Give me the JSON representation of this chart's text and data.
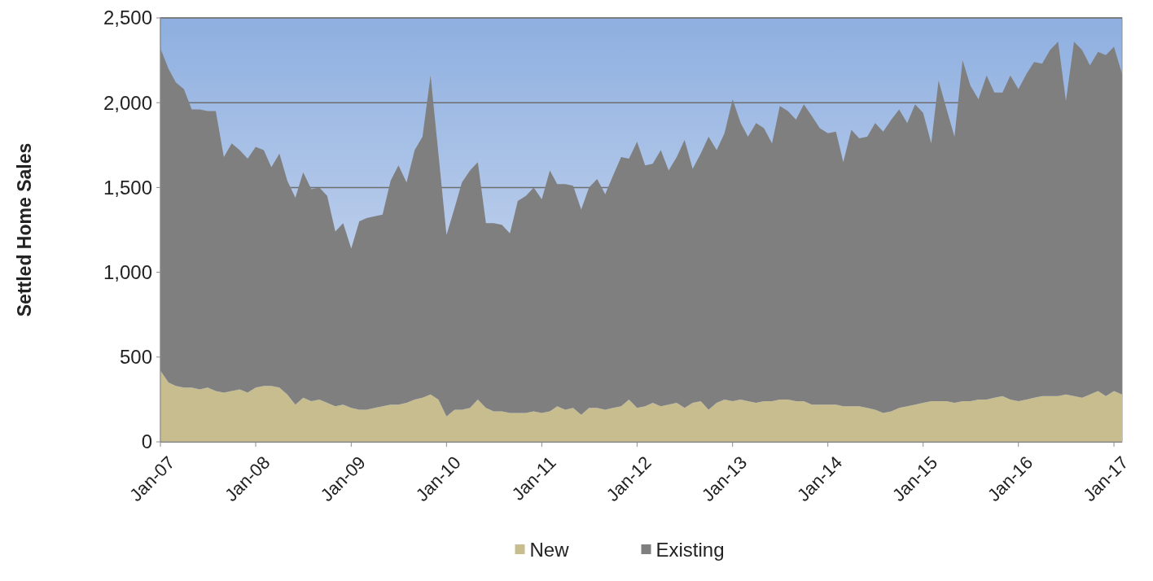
{
  "chart_data": {
    "type": "area",
    "stacked": true,
    "ylabel": "Settled Home Sales",
    "x": [
      "2007-01",
      "2007-02",
      "2007-03",
      "2007-04",
      "2007-05",
      "2007-06",
      "2007-07",
      "2007-08",
      "2007-09",
      "2007-10",
      "2007-11",
      "2007-12",
      "2008-01",
      "2008-02",
      "2008-03",
      "2008-04",
      "2008-05",
      "2008-06",
      "2008-07",
      "2008-08",
      "2008-09",
      "2008-10",
      "2008-11",
      "2008-12",
      "2009-01",
      "2009-02",
      "2009-03",
      "2009-04",
      "2009-05",
      "2009-06",
      "2009-07",
      "2009-08",
      "2009-09",
      "2009-10",
      "2009-11",
      "2009-12",
      "2010-01",
      "2010-02",
      "2010-03",
      "2010-04",
      "2010-05",
      "2010-06",
      "2010-07",
      "2010-08",
      "2010-09",
      "2010-10",
      "2010-11",
      "2010-12",
      "2011-01",
      "2011-02",
      "2011-03",
      "2011-04",
      "2011-05",
      "2011-06",
      "2011-07",
      "2011-08",
      "2011-09",
      "2011-10",
      "2011-11",
      "2011-12",
      "2012-01",
      "2012-02",
      "2012-03",
      "2012-04",
      "2012-05",
      "2012-06",
      "2012-07",
      "2012-08",
      "2012-09",
      "2012-10",
      "2012-11",
      "2012-12",
      "2013-01",
      "2013-02",
      "2013-03",
      "2013-04",
      "2013-05",
      "2013-06",
      "2013-07",
      "2013-08",
      "2013-09",
      "2013-10",
      "2013-11",
      "2013-12",
      "2014-01",
      "2014-02",
      "2014-03",
      "2014-04",
      "2014-05",
      "2014-06",
      "2014-07",
      "2014-08",
      "2014-09",
      "2014-10",
      "2014-11",
      "2014-12",
      "2015-01",
      "2015-02",
      "2015-03",
      "2015-04",
      "2015-05",
      "2015-06",
      "2015-07",
      "2015-08",
      "2015-09",
      "2015-10",
      "2015-11",
      "2015-12",
      "2016-01",
      "2016-02",
      "2016-03",
      "2016-04",
      "2016-05",
      "2016-06",
      "2016-07",
      "2016-08",
      "2016-09",
      "2016-10",
      "2016-11",
      "2016-12",
      "2017-01",
      "2017-02"
    ],
    "series": [
      {
        "name": "New",
        "color": "#c8bd8f",
        "values": [
          420,
          350,
          330,
          320,
          320,
          310,
          320,
          300,
          290,
          300,
          310,
          290,
          320,
          330,
          330,
          320,
          280,
          220,
          260,
          240,
          250,
          230,
          210,
          220,
          200,
          190,
          190,
          200,
          210,
          220,
          220,
          230,
          250,
          260,
          280,
          250,
          150,
          190,
          190,
          200,
          250,
          200,
          180,
          180,
          170,
          170,
          170,
          180,
          170,
          180,
          210,
          190,
          200,
          160,
          200,
          200,
          190,
          200,
          210,
          250,
          200,
          210,
          230,
          210,
          220,
          230,
          200,
          230,
          240,
          190,
          230,
          250,
          240,
          250,
          240,
          230,
          240,
          240,
          250,
          250,
          240,
          240,
          220,
          220,
          220,
          220,
          210,
          210,
          210,
          200,
          190,
          170,
          180,
          200,
          210,
          220,
          230,
          240,
          240,
          240,
          230,
          240,
          240,
          250,
          250,
          260,
          270,
          250,
          240,
          250,
          260,
          270,
          270,
          270,
          280,
          270,
          260,
          280,
          300,
          270,
          300,
          280
        ]
      },
      {
        "name": "Existing",
        "color": "#7f7f7f",
        "values": [
          1900,
          1850,
          1790,
          1760,
          1640,
          1650,
          1630,
          1650,
          1390,
          1460,
          1410,
          1380,
          1420,
          1390,
          1290,
          1380,
          1260,
          1220,
          1330,
          1250,
          1250,
          1220,
          1030,
          1070,
          940,
          1110,
          1130,
          1130,
          1130,
          1320,
          1410,
          1300,
          1470,
          1540,
          1880,
          1450,
          1070,
          1190,
          1340,
          1400,
          1400,
          1090,
          1110,
          1100,
          1060,
          1250,
          1280,
          1320,
          1260,
          1420,
          1310,
          1330,
          1310,
          1210,
          1300,
          1350,
          1270,
          1370,
          1470,
          1420,
          1570,
          1420,
          1410,
          1510,
          1380,
          1450,
          1580,
          1380,
          1460,
          1610,
          1490,
          1570,
          1780,
          1630,
          1560,
          1650,
          1610,
          1520,
          1730,
          1700,
          1660,
          1750,
          1700,
          1630,
          1600,
          1610,
          1440,
          1630,
          1580,
          1600,
          1690,
          1660,
          1720,
          1760,
          1670,
          1770,
          1710,
          1520,
          1890,
          1720,
          1570,
          2010,
          1860,
          1770,
          1910,
          1800,
          1790,
          1910,
          1840,
          1920,
          1980,
          1960,
          2040,
          2090,
          1730,
          2090,
          2050,
          1940,
          2000,
          2010,
          2030,
          1890
        ]
      }
    ],
    "xlim": [
      "2007-01",
      "2017-02"
    ],
    "xticks": [
      {
        "value": "2007-01",
        "label": "Jan-07"
      },
      {
        "value": "2008-01",
        "label": "Jan-08"
      },
      {
        "value": "2009-01",
        "label": "Jan-09"
      },
      {
        "value": "2010-01",
        "label": "Jan-10"
      },
      {
        "value": "2011-01",
        "label": "Jan-11"
      },
      {
        "value": "2012-01",
        "label": "Jan-12"
      },
      {
        "value": "2013-01",
        "label": "Jan-13"
      },
      {
        "value": "2014-01",
        "label": "Jan-14"
      },
      {
        "value": "2015-01",
        "label": "Jan-15"
      },
      {
        "value": "2016-01",
        "label": "Jan-16"
      },
      {
        "value": "2017-01",
        "label": "Jan-17"
      }
    ],
    "ylim": [
      0,
      2500
    ],
    "yticks": [
      0,
      500,
      {
        "value": 1000,
        "label": "1,000"
      },
      {
        "value": 1500,
        "label": "1,500"
      },
      {
        "value": 2000,
        "label": "2,000"
      },
      {
        "value": 2500,
        "label": "2,500"
      }
    ],
    "grid": "y",
    "legend": "bottom"
  }
}
